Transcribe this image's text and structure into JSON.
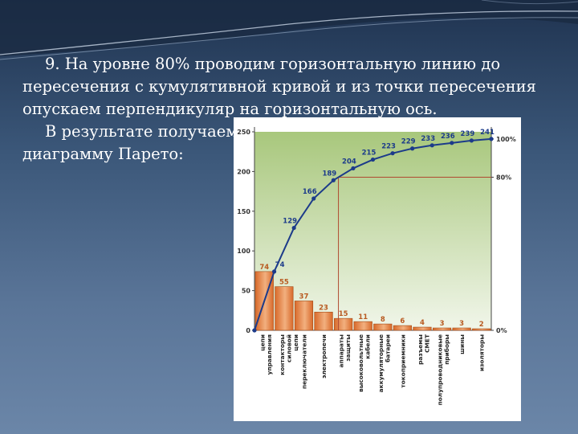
{
  "text": {
    "line1": "9. На уровне 80% проводим горизонтальную линию до",
    "line2": "пересечения с кумулятивной кривой и из точки пересечения",
    "line3": "опускаем перпендикуляр на горизонтальную ось.",
    "line4": "В результате получаем",
    "line5": "диаграмму Парето:"
  },
  "colors": {
    "bar": "#d8692a",
    "bar_light": "#f2b07f",
    "curve": "#1c3b8a",
    "bar_label": "#b85a20",
    "curve_label": "#1c3b8a",
    "guide": "#b04a30",
    "plot_bg_top": "#a8c77c",
    "plot_bg_bottom": "#f1f6ea"
  },
  "chart_data": {
    "type": "bar",
    "categories": [
      "цепи управления",
      "контакторы силовой цепи",
      "переключатели",
      "электропечи",
      "аппараты защиты",
      "высоковольтные кабели",
      "аккумуляторные батареи",
      "токоприемники",
      "разъемы СМЕТ",
      "полупроводниковые приборы",
      "шины",
      "изоляторы"
    ],
    "values": [
      74,
      55,
      37,
      23,
      15,
      11,
      8,
      6,
      4,
      3,
      3,
      2
    ],
    "cumulative_values": [
      74,
      129,
      166,
      189,
      204,
      215,
      223,
      229,
      233,
      236,
      239,
      241
    ],
    "y_ticks": [
      "0",
      "50",
      "100",
      "150",
      "200",
      "250"
    ],
    "ylim": [
      0,
      250
    ],
    "right_axis_ticks": [
      "0%",
      "80%",
      "100%"
    ],
    "right_axis_values": [
      0,
      80,
      100
    ],
    "threshold_percent": 80,
    "grid": false
  }
}
